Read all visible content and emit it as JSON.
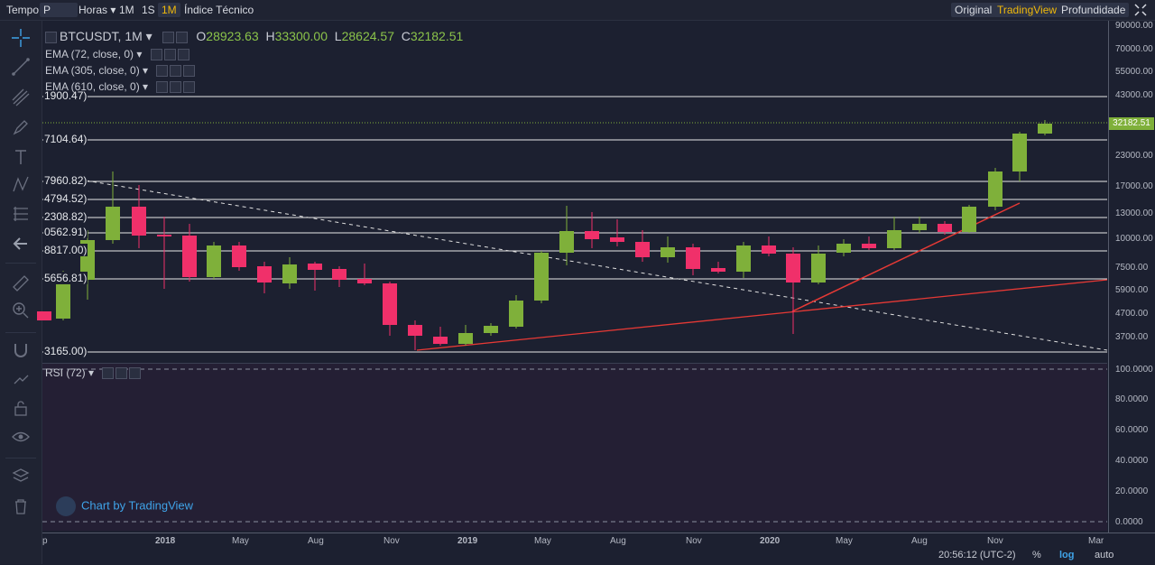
{
  "toolbar": {
    "tempo": "Tempo",
    "interval": "P",
    "horas": "Horas",
    "btn_1m": "1M",
    "btn_1s": "1S",
    "btn_1m_sel": "1M",
    "indice": "Índice Técnico",
    "original": "Original",
    "tradingview": "TradingView",
    "profundidade": "Profundidade"
  },
  "legend": {
    "symbol": "BTCUSDT, 1M",
    "o_key": "O",
    "o_val": "28923.63",
    "h_key": "H",
    "h_val": "33300.00",
    "l_key": "L",
    "l_val": "28624.57",
    "c_key": "C",
    "c_val": "32182.51",
    "ema1": "EMA (72, close, 0)",
    "ema2": "EMA (305, close, 0)",
    "ema3": "EMA (610, close, 0)",
    "rsi": "RSI (72)"
  },
  "hlines": [
    "1900.47)",
    "7104.64)",
    "7960.82)",
    "4794.52)",
    "2308.82)",
    "0562.91)",
    "8817.00)",
    "5656.81)",
    "3165.00)"
  ],
  "price_axis": [
    "90000.00",
    "70000.00",
    "55000.00",
    "43000.00",
    "23000.00",
    "17000.00",
    "13000.00",
    "10000.00",
    "7500.00",
    "5900.00",
    "4700.00",
    "3700.00"
  ],
  "current_price": "32182.51",
  "rsi_axis": [
    "100.0000",
    "80.0000",
    "60.0000",
    "40.0000",
    "20.0000",
    "0.0000"
  ],
  "time_axis": [
    "p",
    "2018",
    "May",
    "Aug",
    "Nov",
    "2019",
    "May",
    "Aug",
    "Nov",
    "2020",
    "May",
    "Aug",
    "Nov",
    "Mar"
  ],
  "status": {
    "clock": "20:56:12 (UTC-2)",
    "percent": "%",
    "log": "log",
    "auto": "auto"
  },
  "watermark": "Chart by TradingView",
  "colors": {
    "up": "#7fb03a",
    "down": "#f0306a",
    "accent": "#f0b90b",
    "trend": "#e53935"
  }
}
